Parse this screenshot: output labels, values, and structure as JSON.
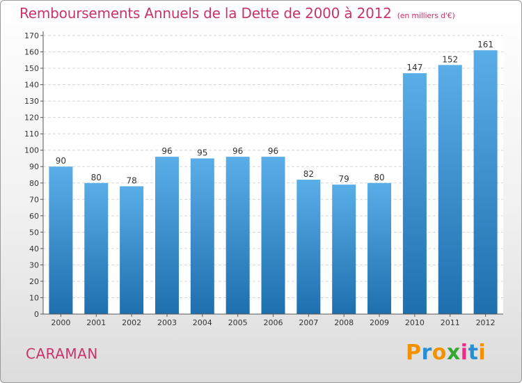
{
  "header": {
    "title": "Remboursements Annuels de la Dette de 2000 à 2012",
    "subtitle": "(en milliers d'€)"
  },
  "footer": {
    "commune": "CARAMAN",
    "logo_text": "Proxiti"
  },
  "colors": {
    "accent": "#c8336b",
    "bar_top": "#5aaee8",
    "bar_bottom": "#1e6fae",
    "logo_letters": [
      "#f39200",
      "#2a8fd2",
      "#f39200",
      "#37a635",
      "#e62f89",
      "#2a8fd2",
      "#f39200"
    ]
  },
  "chart_data": {
    "type": "bar",
    "categories": [
      "2000",
      "2001",
      "2002",
      "2003",
      "2004",
      "2005",
      "2006",
      "2007",
      "2008",
      "2009",
      "2010",
      "2011",
      "2012"
    ],
    "values": [
      90,
      80,
      78,
      96,
      95,
      96,
      96,
      82,
      79,
      80,
      147,
      152,
      161
    ],
    "ylim": [
      0,
      170
    ],
    "yticks": [
      0,
      10,
      20,
      30,
      40,
      50,
      60,
      70,
      80,
      90,
      100,
      110,
      120,
      130,
      140,
      150,
      160,
      170
    ],
    "grid": true
  }
}
